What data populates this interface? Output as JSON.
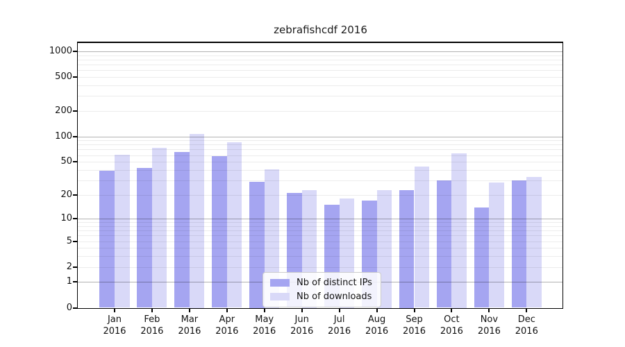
{
  "title": "zebrafishcdf 2016",
  "chart_data": {
    "type": "bar",
    "title": "zebrafishcdf 2016",
    "categories": [
      "Jan 2016",
      "Feb 2016",
      "Mar 2016",
      "Apr 2016",
      "May 2016",
      "Jun 2016",
      "Jul 2016",
      "Aug 2016",
      "Sep 2016",
      "Oct 2016",
      "Nov 2016",
      "Dec 2016"
    ],
    "x_tick_months": [
      "Jan",
      "Feb",
      "Mar",
      "Apr",
      "May",
      "Jun",
      "Jul",
      "Aug",
      "Sep",
      "Oct",
      "Nov",
      "Dec"
    ],
    "x_tick_year": "2016",
    "series": [
      {
        "name": "Nb of distinct IPs",
        "color": "#a5a5f1",
        "values": [
          39,
          42,
          65,
          58,
          29,
          21,
          15,
          17,
          23,
          30,
          14,
          30
        ]
      },
      {
        "name": "Nb of downloads",
        "color": "#d9d9f8",
        "values": [
          61,
          73,
          107,
          85,
          41,
          23,
          18,
          23,
          44,
          63,
          28,
          33
        ]
      }
    ],
    "yscale": "log1p",
    "ylim": [
      0,
      1300
    ],
    "yticks": [
      0,
      1,
      2,
      5,
      10,
      20,
      50,
      100,
      200,
      500,
      1000
    ],
    "grid": true,
    "legend_position": "lower center",
    "xlabel": "",
    "ylabel": ""
  },
  "legend": {
    "items": [
      {
        "label": "Nb of distinct IPs",
        "color": "#a5a5f1"
      },
      {
        "label": "Nb of downloads",
        "color": "#d9d9f8"
      }
    ]
  },
  "colors": {
    "background": "#ffffff",
    "bar_distinct_ips": "#a5a5f1",
    "bar_downloads": "#d9d9f8",
    "major_gridline": "#b3b3b3",
    "minor_gridline": "#ebebeb",
    "spine": "#000000",
    "text": "#111111"
  }
}
